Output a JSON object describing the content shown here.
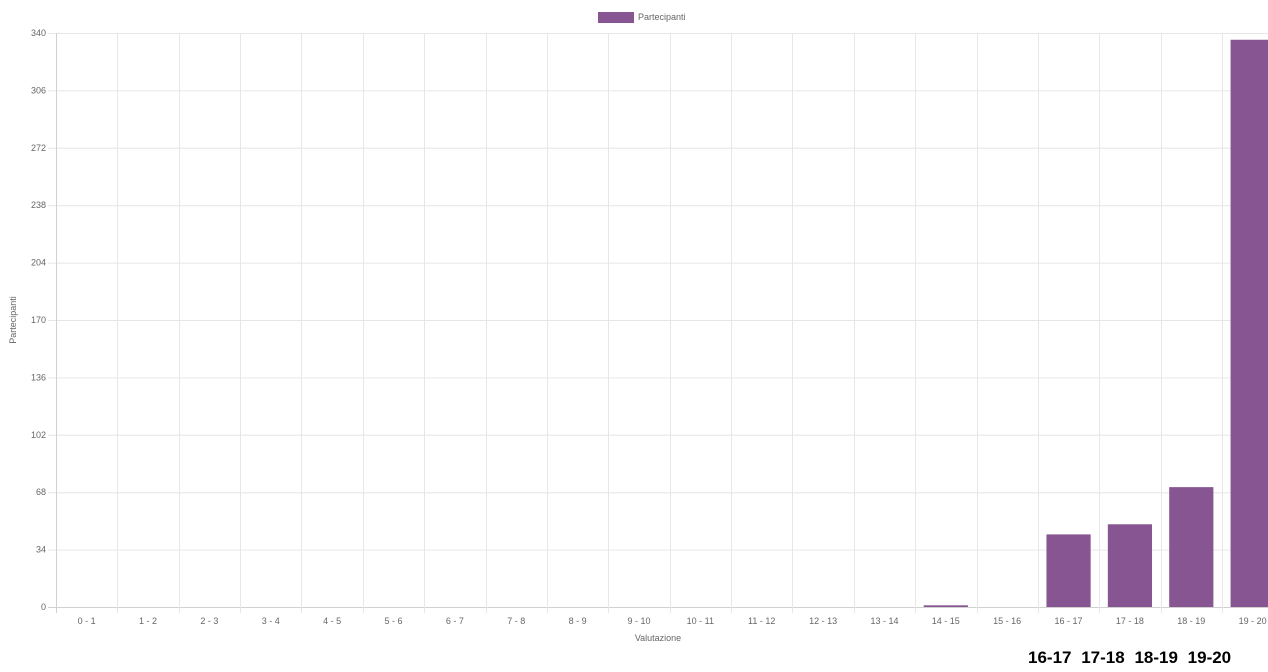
{
  "chart_data": {
    "type": "bar",
    "title": "",
    "xlabel": "Valutazione",
    "ylabel": "Partecipanti",
    "ylim": [
      0,
      340
    ],
    "yticks": [
      0,
      34,
      68,
      102,
      136,
      170,
      204,
      238,
      272,
      306,
      340
    ],
    "grid": true,
    "legend_position": "top-center",
    "categories": [
      "0 - 1",
      "1 - 2",
      "2 - 3",
      "3 - 4",
      "4 - 5",
      "5 - 6",
      "6 - 7",
      "7 - 8",
      "8 - 9",
      "9 - 10",
      "10 - 11",
      "11 - 12",
      "12 - 13",
      "13 - 14",
      "14 - 15",
      "15 - 16",
      "16 - 17",
      "17 - 18",
      "18 - 19",
      "19 - 20"
    ],
    "series": [
      {
        "name": "Partecipanti",
        "color": "#875592",
        "values": [
          0,
          0,
          0,
          0,
          0,
          0,
          0,
          0,
          0,
          0,
          0,
          0,
          0,
          0,
          1,
          0,
          43,
          49,
          71,
          336
        ]
      }
    ]
  },
  "bottom_labels": [
    "16-17",
    "17-18",
    "18-19",
    "19-20"
  ]
}
